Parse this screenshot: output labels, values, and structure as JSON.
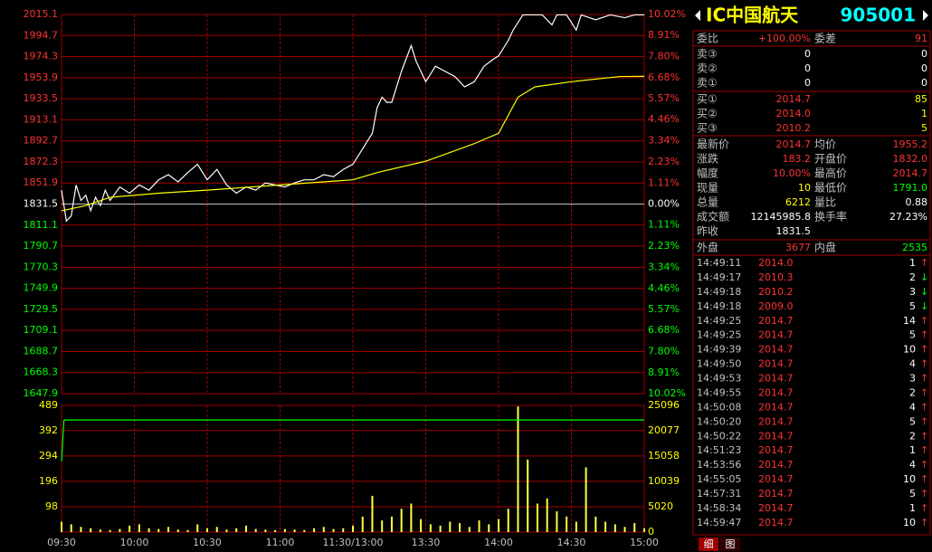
{
  "chart_data": [
    {
      "type": "line",
      "xlim": [
        0,
        240
      ],
      "ylim": [
        1647.9,
        2015.1
      ],
      "yticks": [
        2015.1,
        1994.7,
        1974.3,
        1953.9,
        1933.5,
        1913.1,
        1892.7,
        1872.3,
        1851.9,
        1831.5,
        1811.1,
        1790.7,
        1770.3,
        1749.9,
        1729.5,
        1709.1,
        1688.7,
        1668.3,
        1647.9
      ],
      "y2lim": [
        -10.02,
        10.02
      ],
      "y2ticks": [
        {
          "value": 10.02,
          "label": "10.02%"
        },
        {
          "value": 8.91,
          "label": "8.91%"
        },
        {
          "value": 7.8,
          "label": "7.80%"
        },
        {
          "value": 6.68,
          "label": "6.68%"
        },
        {
          "value": 5.57,
          "label": "5.57%"
        },
        {
          "value": 4.46,
          "label": "4.46%"
        },
        {
          "value": 3.34,
          "label": "3.34%"
        },
        {
          "value": 2.23,
          "label": "2.23%"
        },
        {
          "value": 1.11,
          "label": "1.11%"
        },
        {
          "value": 0,
          "label": "0.00%"
        },
        {
          "value": -1.11,
          "label": "1.11%"
        },
        {
          "value": -2.23,
          "label": "2.23%"
        },
        {
          "value": -3.34,
          "label": "3.34%"
        },
        {
          "value": -4.46,
          "label": "4.46%"
        },
        {
          "value": -5.57,
          "label": "5.57%"
        },
        {
          "value": -6.68,
          "label": "6.68%"
        },
        {
          "value": -7.8,
          "label": "7.80%"
        },
        {
          "value": -8.91,
          "label": "8.91%"
        },
        {
          "value": -10.02,
          "label": "10.02%"
        }
      ],
      "grid": true,
      "series": [
        {
          "color": "#ffffff",
          "x": [
            0,
            2,
            4,
            6,
            8,
            10,
            12,
            14,
            16,
            18,
            20,
            24,
            28,
            32,
            36,
            40,
            44,
            48,
            52,
            56,
            60,
            64,
            68,
            72,
            76,
            80,
            84,
            88,
            92,
            96,
            100,
            104,
            108,
            112,
            116,
            120,
            124,
            128,
            130,
            132,
            134,
            136,
            140,
            144,
            146,
            150,
            154,
            158,
            162,
            166,
            170,
            174,
            178,
            180,
            184,
            186,
            190,
            194,
            198,
            202,
            204,
            208,
            212,
            214,
            220,
            226,
            232,
            236,
            240
          ],
          "values": [
            1845,
            1815,
            1820,
            1850,
            1835,
            1840,
            1825,
            1838,
            1830,
            1845,
            1835,
            1848,
            1842,
            1850,
            1845,
            1855,
            1860,
            1853,
            1862,
            1870,
            1855,
            1865,
            1850,
            1842,
            1848,
            1845,
            1852,
            1850,
            1848,
            1852,
            1855,
            1855,
            1860,
            1858,
            1865,
            1870,
            1885,
            1900,
            1925,
            1935,
            1930,
            1930,
            1960,
            1985,
            1970,
            1950,
            1965,
            1960,
            1955,
            1945,
            1950,
            1965,
            1972,
            1975,
            1990,
            2000,
            2014.7,
            2014.7,
            2014.7,
            2005,
            2014.7,
            2014.7,
            2000,
            2014.7,
            2010,
            2014.7,
            2012,
            2014.7,
            2014.7
          ]
        },
        {
          "color": "#ffff00",
          "x": [
            0,
            10,
            20,
            40,
            60,
            90,
            120,
            130,
            150,
            170,
            180,
            188,
            195,
            210,
            230,
            240
          ],
          "values": [
            1825,
            1830,
            1838,
            1842,
            1845,
            1850,
            1855,
            1862,
            1873,
            1890,
            1900,
            1935,
            1945,
            1950,
            1955,
            1955.2
          ]
        }
      ]
    },
    {
      "type": "bar",
      "xlim": [
        0,
        240
      ],
      "xticks": [
        {
          "value": 0,
          "label": "09:30"
        },
        {
          "value": 30,
          "label": "10:00"
        },
        {
          "value": 60,
          "label": "10:30"
        },
        {
          "value": 90,
          "label": "11:00"
        },
        {
          "value": 120,
          "label": "11:30/13:00"
        },
        {
          "value": 150,
          "label": "13:30"
        },
        {
          "value": 180,
          "label": "14:00"
        },
        {
          "value": 210,
          "label": "14:30"
        },
        {
          "value": 240,
          "label": "15:00"
        }
      ],
      "ylim": [
        0,
        489
      ],
      "yticks": [
        489,
        392,
        294,
        196,
        98
      ],
      "y2lim": [
        0,
        25096
      ],
      "y2ticks": [
        25096,
        20077,
        15058,
        10039,
        5020,
        0
      ],
      "grid": true,
      "series": [
        {
          "color": "#ffff40",
          "x": [
            0,
            4,
            8,
            12,
            16,
            20,
            24,
            28,
            32,
            36,
            40,
            44,
            48,
            52,
            56,
            60,
            64,
            68,
            72,
            76,
            80,
            84,
            88,
            92,
            96,
            100,
            104,
            108,
            112,
            116,
            120,
            124,
            128,
            132,
            136,
            140,
            144,
            148,
            152,
            156,
            160,
            164,
            168,
            172,
            176,
            180,
            184,
            188,
            192,
            196,
            200,
            204,
            208,
            212,
            216,
            220,
            224,
            228,
            232,
            236,
            240
          ],
          "values": [
            40,
            30,
            20,
            15,
            10,
            8,
            12,
            25,
            30,
            15,
            12,
            20,
            10,
            8,
            30,
            15,
            20,
            10,
            15,
            25,
            12,
            10,
            8,
            12,
            10,
            8,
            15,
            20,
            12,
            15,
            25,
            60,
            140,
            45,
            60,
            90,
            110,
            50,
            30,
            25,
            40,
            35,
            20,
            45,
            30,
            50,
            90,
            485,
            280,
            110,
            130,
            80,
            60,
            40,
            250,
            60,
            40,
            30,
            20,
            35,
            15
          ]
        },
        {
          "type": "line",
          "axis": "y2",
          "color": "#00ff00",
          "x": [
            0,
            1,
            240
          ],
          "values": [
            14000,
            22200,
            22200
          ]
        }
      ]
    }
  ],
  "panel": {
    "title_name": "IC中国航天",
    "title_code": "905001",
    "rows": [
      {
        "label": "委比",
        "value": "+100.00%",
        "value_color": "#ff3232",
        "label2": "委差",
        "value2": "91",
        "value2_color": "#ff3232"
      },
      {
        "label": "卖③",
        "value": "0",
        "value_color": "#ffffff",
        "value2": "0",
        "value2_color": "#ffffff"
      },
      {
        "label": "卖②",
        "value": "0",
        "value_color": "#ffffff",
        "value2": "0",
        "value2_color": "#ffffff"
      },
      {
        "label": "卖①",
        "value": "0",
        "value_color": "#ffffff",
        "value2": "0",
        "value2_color": "#ffffff"
      },
      {
        "label": "买①",
        "value": "2014.7",
        "value_color": "#ff3232",
        "value2": "85",
        "value2_color": "#ffff00"
      },
      {
        "label": "买②",
        "value": "2014.0",
        "value_color": "#ff3232",
        "value2": "1",
        "value2_color": "#ffff00"
      },
      {
        "label": "买③",
        "value": "2010.2",
        "value_color": "#ff3232",
        "value2": "5",
        "value2_color": "#ffff00"
      },
      {
        "label": "最新价",
        "value": "2014.7",
        "value_color": "#ff3232",
        "label2": "均价",
        "value2": "1955.2",
        "value2_color": "#ff3232"
      },
      {
        "label": "涨跌",
        "value": "183.2",
        "value_color": "#ff3232",
        "label2": "开盘价",
        "value2": "1832.0",
        "value2_color": "#ff3232"
      },
      {
        "label": "幅度",
        "value": "10.00%",
        "value_color": "#ff3232",
        "label2": "最高价",
        "value2": "2014.7",
        "value2_color": "#ff3232"
      },
      {
        "label": "现量",
        "value": "10",
        "value_color": "#ffff00",
        "label2": "最低价",
        "value2": "1791.0",
        "value2_color": "#00ff00"
      },
      {
        "label": "总量",
        "value": "6212",
        "value_color": "#ffff00",
        "label2": "量比",
        "value2": "0.88",
        "value2_color": "#ffffff"
      },
      {
        "label": "成交额",
        "value": "12145985.8",
        "value_color": "#ffffff",
        "label2": "换手率",
        "value2": "27.23%",
        "value2_color": "#ffffff"
      },
      {
        "label": "昨收",
        "value": "1831.5",
        "value_color": "#ffffff"
      },
      {
        "label": "外盘",
        "value": "3677",
        "value_color": "#ff3232",
        "label2": "内盘",
        "value2": "2535",
        "value2_color": "#00ff00"
      }
    ],
    "ticks": [
      {
        "time": "14:49:11",
        "price": "2014.0",
        "volume": "1",
        "arrow": "↑",
        "arrow_color": "#ff3232"
      },
      {
        "time": "14:49:17",
        "price": "2010.3",
        "volume": "2",
        "arrow": "↓",
        "arrow_color": "#00ff00"
      },
      {
        "time": "14:49:18",
        "price": "2010.2",
        "volume": "3",
        "arrow": "↓",
        "arrow_color": "#00ff00"
      },
      {
        "time": "14:49:18",
        "price": "2009.0",
        "volume": "5",
        "arrow": "↓",
        "arrow_color": "#00ff00"
      },
      {
        "time": "14:49:25",
        "price": "2014.7",
        "volume": "14",
        "arrow": "↑",
        "arrow_color": "#ff3232"
      },
      {
        "time": "14:49:25",
        "price": "2014.7",
        "volume": "5",
        "arrow": "↑",
        "arrow_color": "#ff3232"
      },
      {
        "time": "14:49:39",
        "price": "2014.7",
        "volume": "10",
        "arrow": "↑",
        "arrow_color": "#ff3232"
      },
      {
        "time": "14:49:50",
        "price": "2014.7",
        "volume": "4",
        "arrow": "↑",
        "arrow_color": "#ff3232"
      },
      {
        "time": "14:49:53",
        "price": "2014.7",
        "volume": "3",
        "arrow": "↑",
        "arrow_color": "#ff3232"
      },
      {
        "time": "14:49:55",
        "price": "2014.7",
        "volume": "2",
        "arrow": "↑",
        "arrow_color": "#ff3232"
      },
      {
        "time": "14:50:08",
        "price": "2014.7",
        "volume": "4",
        "arrow": "↑",
        "arrow_color": "#ff3232"
      },
      {
        "time": "14:50:20",
        "price": "2014.7",
        "volume": "5",
        "arrow": "↑",
        "arrow_color": "#ff3232"
      },
      {
        "time": "14:50:22",
        "price": "2014.7",
        "volume": "2",
        "arrow": "↑",
        "arrow_color": "#ff3232"
      },
      {
        "time": "14:51:23",
        "price": "2014.7",
        "volume": "1",
        "arrow": "↑",
        "arrow_color": "#ff3232"
      },
      {
        "time": "14:53:56",
        "price": "2014.7",
        "volume": "4",
        "arrow": "↑",
        "arrow_color": "#ff3232"
      },
      {
        "time": "14:55:05",
        "price": "2014.7",
        "volume": "10",
        "arrow": "↑",
        "arrow_color": "#ff3232"
      },
      {
        "time": "14:57:31",
        "price": "2014.7",
        "volume": "5",
        "arrow": "↑",
        "arrow_color": "#ff3232"
      },
      {
        "time": "14:58:34",
        "price": "2014.7",
        "volume": "1",
        "arrow": "↑",
        "arrow_color": "#ff3232"
      },
      {
        "time": "14:59:47",
        "price": "2014.7",
        "volume": "10",
        "arrow": "↑",
        "arrow_color": "#ff3232"
      }
    ],
    "tabs": [
      "细",
      "图"
    ]
  }
}
